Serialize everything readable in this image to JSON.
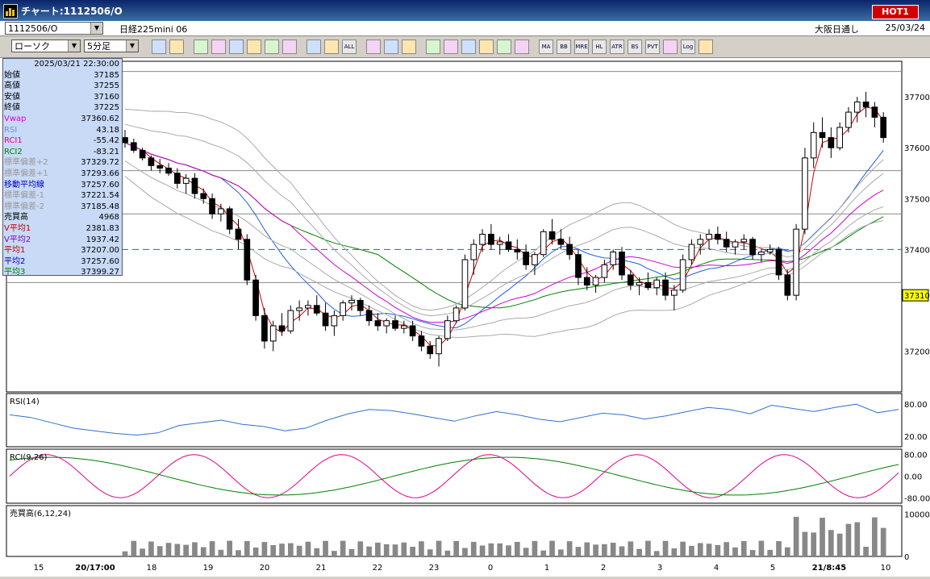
{
  "window": {
    "title": "チャート:1112506/O",
    "hot_label": "HOT1"
  },
  "header": {
    "instrument_code": "1112506/O",
    "instrument_name": "日経225mini 06",
    "session": "大阪日通し",
    "date": "25/03/24",
    "chart_type": "ローソク",
    "timeframe": "5分足"
  },
  "toolbar": {
    "icons": [
      "zoom-icon",
      "crosshair-icon",
      "pen-icon",
      "line-icon",
      "cursor-icon",
      "undo-icon",
      "page-icon",
      "trash-icon",
      "grid-icon",
      "zoom-in-icon",
      "all-icon",
      "settings-icon",
      "tools-icon",
      "palette-icon",
      "download-icon",
      "search-doc-icon",
      "bar-icon",
      "scissors-icon",
      "blank-icon",
      "mesh-icon",
      "ma-icon",
      "bb-icon",
      "mre-icon",
      "hl-icon",
      "atr-icon",
      "bs-icon",
      "pvt-icon",
      "box-icon",
      "log-icon",
      "export-icon"
    ],
    "labels": [
      "",
      "",
      "",
      "",
      "",
      "",
      "",
      "",
      "",
      "",
      "ALL",
      "",
      "",
      "",
      "",
      "",
      "",
      "",
      "",
      "",
      "MA",
      "BB",
      "MRE",
      "HL",
      "ATR",
      "BS",
      "PVT",
      "",
      "Log",
      ""
    ]
  },
  "info_panel": {
    "datetime": "2025/03/21  22:30:00",
    "rows": [
      {
        "k": "始値",
        "v": "37185",
        "c": "#000"
      },
      {
        "k": "高値",
        "v": "37255",
        "c": "#000"
      },
      {
        "k": "安値",
        "v": "37160",
        "c": "#000"
      },
      {
        "k": "終値",
        "v": "37225",
        "c": "#000"
      },
      {
        "k": "Vwap",
        "v": "37360.62",
        "c": "#e000e0"
      },
      {
        "k": "RSI",
        "v": "43.18",
        "c": "#6a8fe0"
      },
      {
        "k": "RCI1",
        "v": "-55.42",
        "c": "#e00090"
      },
      {
        "k": "RCI2",
        "v": "-83.21",
        "c": "#008000"
      },
      {
        "k": "標準偏差+2",
        "v": "37329.72",
        "c": "#999"
      },
      {
        "k": "標準偏差+1",
        "v": "37293.66",
        "c": "#999"
      },
      {
        "k": "移動平均線",
        "v": "37257.60",
        "c": "#0000c0"
      },
      {
        "k": "標準偏差-1",
        "v": "37221.54",
        "c": "#999"
      },
      {
        "k": "標準偏差-2",
        "v": "37185.48",
        "c": "#999"
      },
      {
        "k": "売買高",
        "v": "4968",
        "c": "#000"
      },
      {
        "k": "V平均1",
        "v": "2381.83",
        "c": "#c00000"
      },
      {
        "k": "V平均2",
        "v": "1937.42",
        "c": "#8000c0"
      },
      {
        "k": "平均1",
        "v": "37207.00",
        "c": "#c00000"
      },
      {
        "k": "平均2",
        "v": "37257.60",
        "c": "#0000c0"
      },
      {
        "k": "平均3",
        "v": "37399.27",
        "c": "#008000"
      }
    ]
  },
  "panels": {
    "price": {
      "yticks": [
        "37700",
        "37600",
        "37500",
        "37400",
        "37200"
      ],
      "current_price": "37310",
      "current_price_color": "#ffff00"
    },
    "rsi": {
      "label": "RSI(14)",
      "yticks": [
        "80.00",
        "20.00"
      ]
    },
    "rci": {
      "label": "RCI(9,26)",
      "yticks": [
        "80.00",
        "0.00",
        "-80.00"
      ]
    },
    "volume": {
      "label": "売買高(6,12,24)",
      "yticks": [
        "10000",
        "0"
      ]
    }
  },
  "x_axis": {
    "labels": [
      "15",
      "20/17:00",
      "18",
      "19",
      "20",
      "21",
      "22",
      "23",
      "0",
      "1",
      "2",
      "3",
      "4",
      "5",
      "21/8:45",
      "10"
    ],
    "bold": [
      false,
      true,
      false,
      false,
      false,
      false,
      false,
      false,
      false,
      false,
      false,
      false,
      false,
      false,
      true,
      false
    ]
  },
  "chart_data": {
    "type": "candlestick",
    "ylim": [
      37120,
      37770
    ],
    "candles": [
      [
        37620,
        37635,
        37600,
        37610
      ],
      [
        37610,
        37618,
        37590,
        37595
      ],
      [
        37595,
        37600,
        37575,
        37580
      ],
      [
        37580,
        37585,
        37555,
        37565
      ],
      [
        37565,
        37578,
        37550,
        37560
      ],
      [
        37560,
        37570,
        37545,
        37550
      ],
      [
        37550,
        37560,
        37520,
        37530
      ],
      [
        37530,
        37548,
        37510,
        37540
      ],
      [
        37540,
        37550,
        37500,
        37510
      ],
      [
        37510,
        37520,
        37490,
        37500
      ],
      [
        37500,
        37510,
        37460,
        37470
      ],
      [
        37470,
        37490,
        37455,
        37480
      ],
      [
        37480,
        37485,
        37430,
        37440
      ],
      [
        37440,
        37460,
        37400,
        37420
      ],
      [
        37420,
        37430,
        37330,
        37340
      ],
      [
        37340,
        37350,
        37260,
        37270
      ],
      [
        37270,
        37285,
        37205,
        37220
      ],
      [
        37220,
        37260,
        37200,
        37250
      ],
      [
        37250,
        37275,
        37230,
        37240
      ],
      [
        37240,
        37290,
        37235,
        37280
      ],
      [
        37280,
        37300,
        37260,
        37285
      ],
      [
        37285,
        37300,
        37270,
        37290
      ],
      [
        37290,
        37310,
        37270,
        37275
      ],
      [
        37275,
        37295,
        37240,
        37250
      ],
      [
        37250,
        37280,
        37230,
        37270
      ],
      [
        37270,
        37300,
        37260,
        37295
      ],
      [
        37295,
        37310,
        37280,
        37300
      ],
      [
        37300,
        37305,
        37270,
        37280
      ],
      [
        37280,
        37290,
        37250,
        37260
      ],
      [
        37260,
        37275,
        37240,
        37250
      ],
      [
        37250,
        37265,
        37235,
        37260
      ],
      [
        37260,
        37270,
        37240,
        37245
      ],
      [
        37245,
        37260,
        37235,
        37250
      ],
      [
        37250,
        37260,
        37220,
        37230
      ],
      [
        37230,
        37240,
        37200,
        37210
      ],
      [
        37210,
        37220,
        37185,
        37195
      ],
      [
        37195,
        37230,
        37170,
        37225
      ],
      [
        37225,
        37270,
        37220,
        37260
      ],
      [
        37260,
        37290,
        37255,
        37285
      ],
      [
        37285,
        37390,
        37280,
        37380
      ],
      [
        37380,
        37420,
        37350,
        37410
      ],
      [
        37410,
        37440,
        37395,
        37430
      ],
      [
        37430,
        37450,
        37400,
        37410
      ],
      [
        37410,
        37425,
        37390,
        37415
      ],
      [
        37415,
        37430,
        37395,
        37400
      ],
      [
        37400,
        37420,
        37380,
        37395
      ],
      [
        37395,
        37410,
        37360,
        37370
      ],
      [
        37370,
        37395,
        37350,
        37390
      ],
      [
        37390,
        37440,
        37385,
        37435
      ],
      [
        37435,
        37460,
        37410,
        37420
      ],
      [
        37420,
        37440,
        37400,
        37410
      ],
      [
        37410,
        37425,
        37380,
        37390
      ],
      [
        37390,
        37400,
        37330,
        37345
      ],
      [
        37345,
        37365,
        37320,
        37330
      ],
      [
        37330,
        37350,
        37315,
        37345
      ],
      [
        37345,
        37380,
        37335,
        37370
      ],
      [
        37370,
        37400,
        37360,
        37395
      ],
      [
        37395,
        37405,
        37340,
        37350
      ],
      [
        37350,
        37360,
        37320,
        37330
      ],
      [
        37330,
        37345,
        37310,
        37335
      ],
      [
        37335,
        37355,
        37320,
        37325
      ],
      [
        37325,
        37345,
        37310,
        37340
      ],
      [
        37340,
        37355,
        37300,
        37310
      ],
      [
        37310,
        37330,
        37280,
        37320
      ],
      [
        37320,
        37390,
        37315,
        37380
      ],
      [
        37380,
        37420,
        37370,
        37410
      ],
      [
        37410,
        37430,
        37390,
        37420
      ],
      [
        37420,
        37440,
        37400,
        37430
      ],
      [
        37430,
        37445,
        37410,
        37420
      ],
      [
        37420,
        37435,
        37395,
        37405
      ],
      [
        37405,
        37420,
        37390,
        37415
      ],
      [
        37415,
        37430,
        37400,
        37420
      ],
      [
        37420,
        37425,
        37380,
        37390
      ],
      [
        37390,
        37400,
        37375,
        37395
      ],
      [
        37395,
        37410,
        37390,
        37400
      ],
      [
        37400,
        37405,
        37340,
        37350
      ],
      [
        37350,
        37360,
        37300,
        37310
      ],
      [
        37310,
        37450,
        37300,
        37440
      ],
      [
        37440,
        37600,
        37430,
        37580
      ],
      [
        37580,
        37650,
        37560,
        37630
      ],
      [
        37630,
        37660,
        37600,
        37620
      ],
      [
        37620,
        37640,
        37580,
        37600
      ],
      [
        37600,
        37650,
        37595,
        37640
      ],
      [
        37640,
        37680,
        37630,
        37670
      ],
      [
        37670,
        37700,
        37650,
        37690
      ],
      [
        37690,
        37710,
        37660,
        37680
      ],
      [
        37680,
        37690,
        37640,
        37660
      ],
      [
        37660,
        37670,
        37610,
        37620
      ]
    ],
    "rsi_values": [
      60,
      55,
      45,
      35,
      30,
      25,
      22,
      26,
      40,
      45,
      50,
      42,
      38,
      30,
      35,
      50,
      62,
      70,
      68,
      62,
      55,
      48,
      58,
      66,
      60,
      52,
      47,
      55,
      63,
      60,
      52,
      58,
      66,
      74,
      70,
      62,
      78,
      72,
      66,
      74,
      80,
      64,
      70
    ]
  }
}
